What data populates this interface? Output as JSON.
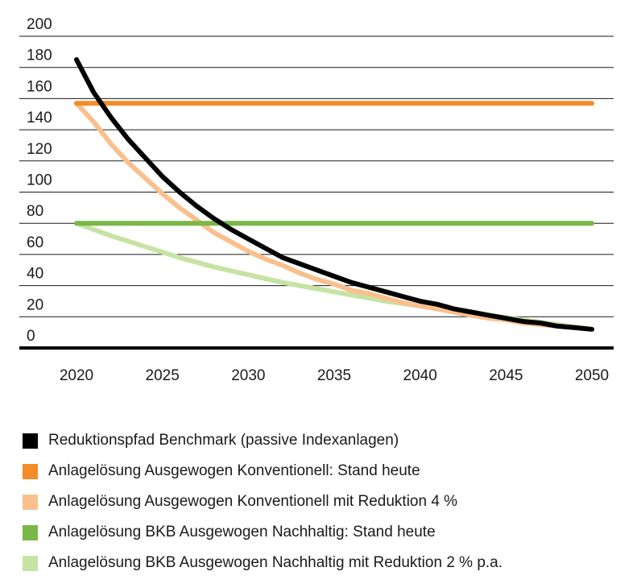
{
  "chart_data": {
    "type": "line",
    "title": "",
    "xlabel": "",
    "ylabel": "",
    "x_ticks": [
      "2020",
      "2025",
      "2030",
      "2035",
      "2040",
      "2045",
      "2050"
    ],
    "y_ticks": [
      "200",
      "180",
      "160",
      "140",
      "120",
      "100",
      "80",
      "60",
      "40",
      "20",
      "0"
    ],
    "xlim": [
      2020,
      2050
    ],
    "ylim": [
      0,
      200
    ],
    "grid": "horizontal",
    "legend_position": "bottom",
    "series": [
      {
        "name": "Reduktionspfad Benchmark (passive Indexanlagen)",
        "color": "#000000",
        "x": [
          2020,
          2021,
          2022,
          2023,
          2024,
          2025,
          2026,
          2027,
          2028,
          2029,
          2030,
          2031,
          2032,
          2033,
          2034,
          2035,
          2036,
          2037,
          2038,
          2039,
          2040,
          2041,
          2042,
          2043,
          2044,
          2045,
          2046,
          2047,
          2048,
          2049,
          2050
        ],
        "y": [
          185,
          164,
          148,
          134,
          122,
          110,
          100,
          91,
          83,
          76,
          70,
          64,
          58,
          54,
          50,
          46,
          42,
          39,
          36,
          33,
          30,
          28,
          25,
          23,
          21,
          19,
          17,
          16,
          14,
          13,
          12
        ]
      },
      {
        "name": "Anlagelösung Ausgewogen Konventionell: Stand heute",
        "color": "#f28c28",
        "x": [
          2020,
          2050
        ],
        "y": [
          157,
          157
        ]
      },
      {
        "name": "Anlagelösung Ausgewogen Konventionell mit Reduktion 4 %",
        "color": "#f9c08d",
        "x": [
          2020,
          2021,
          2022,
          2023,
          2024,
          2025,
          2026,
          2027,
          2028,
          2029,
          2030,
          2031,
          2032,
          2033,
          2034,
          2035,
          2036,
          2037,
          2038,
          2039,
          2040,
          2041,
          2042,
          2043,
          2044,
          2045,
          2046,
          2047,
          2048,
          2049,
          2050
        ],
        "y": [
          157,
          145,
          131,
          119,
          109,
          99,
          90,
          82,
          74,
          68,
          62,
          57,
          53,
          48,
          44,
          41,
          37,
          35,
          32,
          29,
          27,
          25,
          23,
          21,
          19,
          18,
          16,
          15,
          14,
          13,
          12
        ]
      },
      {
        "name": "Anlagelösung BKB Ausgewogen Nachhaltig: Stand heute",
        "color": "#7ab648",
        "x": [
          2020,
          2050
        ],
        "y": [
          80,
          80
        ]
      },
      {
        "name": "Anlagelösung BKB Ausgewogen Nachhaltig mit Reduktion 2 % p.a.",
        "color": "#c6e3a4",
        "x": [
          2020,
          2022,
          2024,
          2026,
          2028,
          2030,
          2032,
          2034,
          2036,
          2038,
          2040,
          2042,
          2044,
          2046,
          2048,
          2050
        ],
        "y": [
          80,
          72,
          65,
          58,
          52,
          47,
          42,
          38,
          34,
          30,
          27,
          24,
          21,
          18,
          15,
          12
        ]
      }
    ]
  }
}
